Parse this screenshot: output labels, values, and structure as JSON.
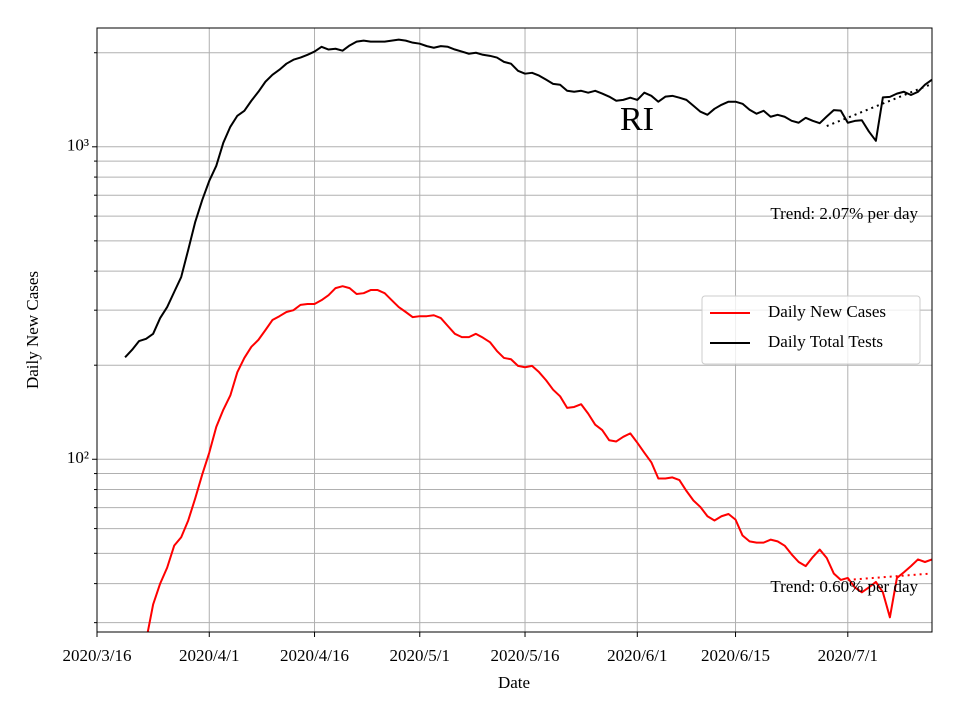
{
  "chart_data": {
    "type": "line",
    "xlabel": "Date",
    "ylabel": "Daily New Cases",
    "annotations": [
      "RI",
      "Trend: 2.07% per day",
      "Trend: 0.60% per day"
    ],
    "log_y": true,
    "grid": true,
    "legend": "center right",
    "xlim": [
      "2020-03-16",
      "2020-07-13"
    ],
    "xticks": [
      {
        "value": "2020-03-16",
        "label": "2020/3/16"
      },
      {
        "value": "2020-04-01",
        "label": "2020/4/1"
      },
      {
        "value": "2020-04-16",
        "label": "2020/4/16"
      },
      {
        "value": "2020-05-01",
        "label": "2020/5/1"
      },
      {
        "value": "2020-05-16",
        "label": "2020/5/16"
      },
      {
        "value": "2020-06-01",
        "label": "2020/6/1"
      },
      {
        "value": "2020-06-15",
        "label": "2020/6/15"
      },
      {
        "value": "2020-07-01",
        "label": "2020/7/1"
      }
    ],
    "ylim": [
      28,
      2400
    ],
    "yticks": [
      {
        "value": 100,
        "label": "10²"
      },
      {
        "value": 1000,
        "label": "10³"
      }
    ],
    "yminorticks": [
      30,
      40,
      50,
      60,
      70,
      80,
      90,
      200,
      300,
      400,
      500,
      600,
      700,
      800,
      900,
      2000
    ],
    "x": [
      "2020-03-20",
      "2020-03-21",
      "2020-03-22",
      "2020-03-23",
      "2020-03-24",
      "2020-03-25",
      "2020-03-26",
      "2020-03-27",
      "2020-03-28",
      "2020-03-29",
      "2020-03-30",
      "2020-03-31",
      "2020-04-01",
      "2020-04-02",
      "2020-04-03",
      "2020-04-04",
      "2020-04-05",
      "2020-04-06",
      "2020-04-07",
      "2020-04-08",
      "2020-04-09",
      "2020-04-10",
      "2020-04-11",
      "2020-04-12",
      "2020-04-13",
      "2020-04-14",
      "2020-04-15",
      "2020-04-16",
      "2020-04-17",
      "2020-04-18",
      "2020-04-19",
      "2020-04-20",
      "2020-04-21",
      "2020-04-22",
      "2020-04-23",
      "2020-04-24",
      "2020-04-25",
      "2020-04-26",
      "2020-04-27",
      "2020-04-28",
      "2020-04-29",
      "2020-04-30",
      "2020-05-01",
      "2020-05-02",
      "2020-05-03",
      "2020-05-04",
      "2020-05-05",
      "2020-05-06",
      "2020-05-07",
      "2020-05-08",
      "2020-05-09",
      "2020-05-10",
      "2020-05-11",
      "2020-05-12",
      "2020-05-13",
      "2020-05-14",
      "2020-05-15",
      "2020-05-16",
      "2020-05-17",
      "2020-05-18",
      "2020-05-19",
      "2020-05-20",
      "2020-05-21",
      "2020-05-22",
      "2020-05-23",
      "2020-05-24",
      "2020-05-25",
      "2020-05-26",
      "2020-05-27",
      "2020-05-28",
      "2020-05-29",
      "2020-05-30",
      "2020-05-31",
      "2020-06-01",
      "2020-06-02",
      "2020-06-03",
      "2020-06-04",
      "2020-06-05",
      "2020-06-06",
      "2020-06-07",
      "2020-06-08",
      "2020-06-09",
      "2020-06-10",
      "2020-06-11",
      "2020-06-12",
      "2020-06-13",
      "2020-06-14",
      "2020-06-15",
      "2020-06-16",
      "2020-06-17",
      "2020-06-18",
      "2020-06-19",
      "2020-06-20",
      "2020-06-21",
      "2020-06-22",
      "2020-06-23",
      "2020-06-24",
      "2020-06-25",
      "2020-06-26",
      "2020-06-27",
      "2020-06-28",
      "2020-06-29",
      "2020-06-30",
      "2020-07-01",
      "2020-07-02",
      "2020-07-03",
      "2020-07-04",
      "2020-07-05",
      "2020-07-06",
      "2020-07-07",
      "2020-07-08",
      "2020-07-09",
      "2020-07-10",
      "2020-07-11",
      "2020-07-12",
      "2020-07-13"
    ],
    "series": [
      {
        "name": "Daily New Cases",
        "color": "#ff0000",
        "values": [
          null,
          null,
          null,
          26.3,
          34.3,
          40.0,
          45.0,
          52.9,
          56.3,
          63.7,
          75.0,
          89.4,
          105,
          127,
          144,
          160,
          190,
          211,
          229,
          241,
          259,
          279,
          287,
          296,
          300,
          312,
          314,
          314,
          323,
          335,
          353,
          358,
          353,
          338,
          340,
          348,
          348,
          340,
          323,
          307,
          296,
          285,
          287,
          287,
          289,
          283,
          267,
          252,
          246,
          246,
          252,
          245,
          237,
          222,
          211,
          209,
          199,
          197,
          199,
          190,
          179,
          167,
          159,
          146,
          147,
          150,
          140,
          129,
          124,
          115,
          114,
          118,
          121,
          113,
          105,
          97.8,
          86.8,
          86.8,
          87.5,
          85.8,
          79.2,
          73.8,
          70.3,
          65.7,
          63.7,
          65.7,
          66.8,
          64.1,
          57.0,
          54.6,
          54.1,
          54.1,
          55.3,
          54.6,
          52.9,
          49.6,
          46.9,
          45.5,
          48.6,
          51.4,
          48.3,
          43.1,
          41.1,
          41.7,
          38.9,
          37.5,
          38.9,
          40.5,
          37.5,
          31.2,
          41.7,
          43.5,
          45.5,
          47.8,
          46.9,
          47.8
        ]
      },
      {
        "name": "Daily Total Tests",
        "color": "#000000",
        "values": [
          212,
          224,
          239,
          243,
          252,
          283,
          307,
          343,
          383,
          468,
          575,
          676,
          778,
          869,
          1030,
          1159,
          1257,
          1304,
          1404,
          1500,
          1615,
          1700,
          1765,
          1845,
          1900,
          1930,
          1970,
          2017,
          2090,
          2048,
          2060,
          2030,
          2110,
          2170,
          2187,
          2170,
          2170,
          2170,
          2187,
          2203,
          2187,
          2154,
          2138,
          2100,
          2075,
          2100,
          2090,
          2048,
          2017,
          1985,
          2000,
          1970,
          1955,
          1930,
          1870,
          1845,
          1750,
          1714,
          1725,
          1690,
          1640,
          1590,
          1580,
          1511,
          1500,
          1511,
          1490,
          1511,
          1480,
          1447,
          1404,
          1413,
          1436,
          1413,
          1490,
          1456,
          1394,
          1447,
          1456,
          1436,
          1413,
          1353,
          1295,
          1266,
          1323,
          1363,
          1394,
          1394,
          1373,
          1314,
          1276,
          1304,
          1248,
          1266,
          1248,
          1211,
          1194,
          1238,
          1211,
          1190,
          1250,
          1310,
          1305,
          1194,
          1210,
          1216,
          1120,
          1045,
          1440,
          1445,
          1480,
          1500,
          1465,
          1500,
          1580,
          1640
        ]
      }
    ],
    "trends": [
      {
        "color": "#ff0000",
        "x": [
          "2020-07-01",
          "2020-07-13"
        ],
        "values": [
          41.1,
          43.1
        ]
      },
      {
        "color": "#000000",
        "x": [
          "2020-06-28",
          "2020-07-13"
        ],
        "values": [
          1165,
          1590
        ]
      }
    ]
  }
}
